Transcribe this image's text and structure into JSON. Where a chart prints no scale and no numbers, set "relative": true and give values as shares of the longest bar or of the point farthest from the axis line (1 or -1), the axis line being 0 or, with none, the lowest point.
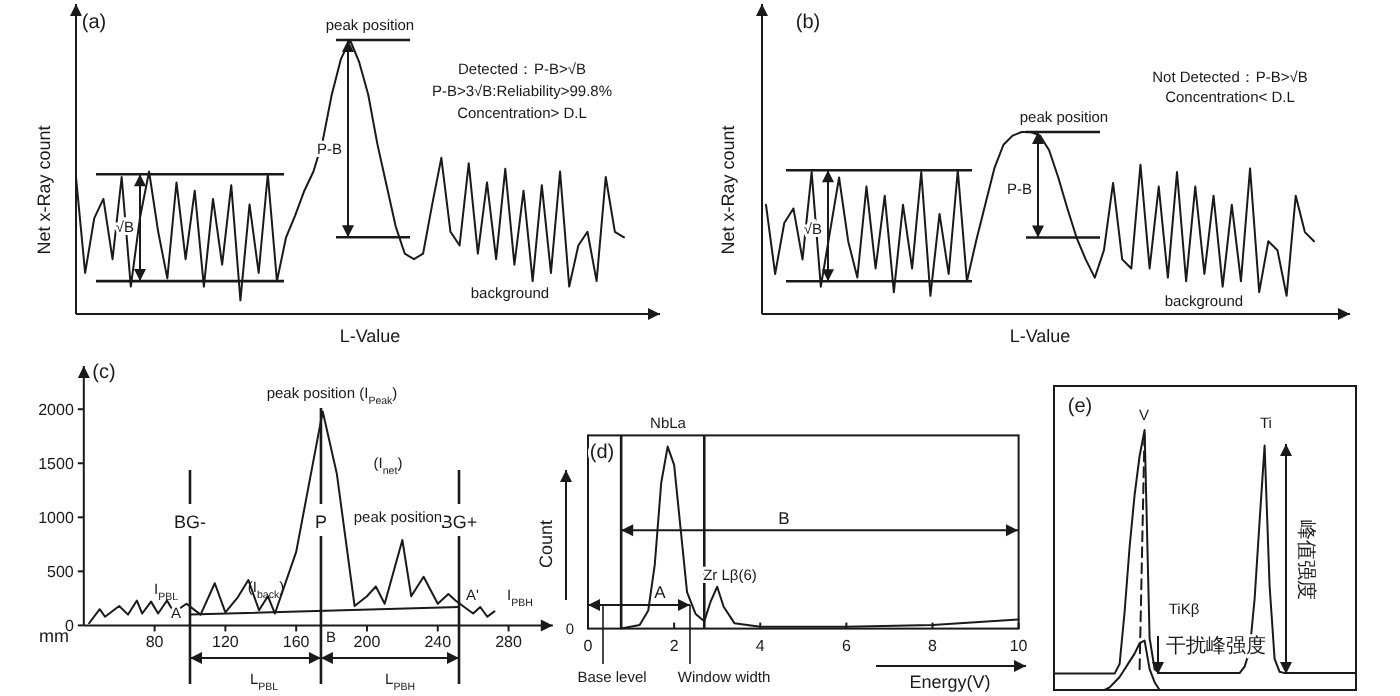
{
  "chart_data": [
    {
      "type": "line",
      "title": "(a)",
      "xlabel": "L-Value",
      "ylabel": "Net x-Ray count",
      "relative": true,
      "categories": [
        null,
        null,
        null,
        null,
        null,
        null,
        null,
        null,
        null,
        null,
        null,
        null,
        null,
        null,
        null,
        null,
        null,
        null,
        null,
        null,
        null,
        null,
        null,
        null,
        null,
        null,
        null,
        null,
        null,
        null,
        null,
        null,
        null,
        null,
        null,
        null,
        null,
        null,
        null,
        null,
        null,
        null,
        null,
        null,
        null,
        null,
        null,
        null,
        null,
        null,
        null,
        null,
        null,
        null,
        null,
        null,
        null,
        null,
        null,
        null,
        null
      ],
      "series": [
        {
          "color": "#1a1a1a",
          "values": [
            0.5,
            0.15,
            0.35,
            0.42,
            0.2,
            0.5,
            0.1,
            0.35,
            0.52,
            0.3,
            0.13,
            0.48,
            0.2,
            0.45,
            0.1,
            0.42,
            0.18,
            0.47,
            0.05,
            0.4,
            0.15,
            0.51,
            0.12,
            0.28,
            0.36,
            0.45,
            0.52,
            0.63,
            0.8,
            0.93,
            1,
            0.92,
            0.8,
            0.62,
            0.47,
            0.32,
            0.22,
            0.2,
            0.22,
            0.4,
            0.57,
            0.3,
            0.25,
            0.55,
            0.22,
            0.48,
            0.2,
            0.53,
            0.18,
            0.45,
            0.12,
            0.47,
            0.15,
            0.52,
            0.1,
            0.25,
            0.3,
            0.12,
            0.5,
            0.3,
            0.28
          ]
        }
      ],
      "ref_lines": [
        {
          "axis": "y",
          "value": 0.51
        },
        {
          "axis": "y",
          "value": 0.12
        },
        {
          "axis": "y",
          "value": 1
        },
        {
          "axis": "y",
          "value": 0.28
        }
      ],
      "annotations": [
        "peak position",
        "P-B",
        "√B",
        "Detected：P-B>√B",
        "P-B>3√B:Reliability>99.8%",
        "Concentration> D.L",
        "background"
      ]
    },
    {
      "type": "line",
      "title": "(b)",
      "xlabel": "L-Value",
      "ylabel": "Net x-Ray count",
      "relative": true,
      "categories": [
        null,
        null,
        null,
        null,
        null,
        null,
        null,
        null,
        null,
        null,
        null,
        null,
        null,
        null,
        null,
        null,
        null,
        null,
        null,
        null,
        null,
        null,
        null,
        null,
        null,
        null,
        null,
        null,
        null,
        null,
        null,
        null,
        null,
        null,
        null,
        null,
        null,
        null,
        null,
        null,
        null,
        null,
        null,
        null,
        null,
        null,
        null,
        null,
        null,
        null,
        null,
        null,
        null,
        null,
        null,
        null,
        null,
        null,
        null,
        null,
        null
      ],
      "series": [
        {
          "color": "#1a1a1a",
          "values": [
            0.6,
            0.22,
            0.5,
            0.58,
            0.3,
            0.78,
            0.15,
            0.45,
            0.75,
            0.4,
            0.2,
            0.7,
            0.25,
            0.65,
            0.12,
            0.6,
            0.25,
            0.78,
            0.1,
            0.55,
            0.22,
            0.79,
            0.18,
            0.4,
            0.6,
            0.8,
            0.93,
            0.98,
            1,
            1,
            0.98,
            0.9,
            0.75,
            0.58,
            0.42,
            0.3,
            0.2,
            0.35,
            0.72,
            0.3,
            0.25,
            0.82,
            0.25,
            0.7,
            0.2,
            0.78,
            0.18,
            0.7,
            0.22,
            0.65,
            0.15,
            0.6,
            0.18,
            0.8,
            0.12,
            0.4,
            0.35,
            0.1,
            0.65,
            0.45,
            0.4
          ]
        }
      ],
      "ref_lines": [
        {
          "axis": "y",
          "value": 0.79
        },
        {
          "axis": "y",
          "value": 0.18
        },
        {
          "axis": "y",
          "value": 1
        },
        {
          "axis": "y",
          "value": 0.42
        }
      ],
      "annotations": [
        "peak position",
        "P-B",
        "√B",
        "Not Detected：P-B>√B",
        "Concentration< D.L",
        "background"
      ]
    },
    {
      "type": "line",
      "title": "(c)",
      "xlabel": "mm",
      "xlim": [
        40,
        305
      ],
      "xticks": [
        80,
        120,
        160,
        200,
        240,
        280
      ],
      "ylim": [
        0,
        2400
      ],
      "yticks": [
        0,
        500,
        1000,
        1500,
        2000
      ],
      "series": [
        {
          "color": "#1a1a1a",
          "x": [
            43,
            49,
            52,
            60,
            65,
            70,
            73,
            78,
            82,
            87,
            91,
            98,
            106,
            114,
            120,
            127,
            133,
            139,
            144,
            148,
            160,
            175,
            183,
            193,
            200,
            205,
            210,
            220,
            225,
            232,
            240,
            246,
            250,
            260,
            264,
            268,
            272
          ],
          "values": [
            20,
            150,
            80,
            180,
            100,
            230,
            110,
            220,
            110,
            230,
            120,
            200,
            100,
            390,
            120,
            260,
            420,
            140,
            270,
            110,
            680,
            1980,
            1400,
            180,
            270,
            360,
            200,
            790,
            270,
            450,
            200,
            290,
            230,
            110,
            170,
            80,
            130
          ]
        },
        {
          "type": "line",
          "color": "#1a1a1a",
          "x": [
            100,
            252
          ],
          "values": [
            100,
            170
          ]
        }
      ],
      "ref_lines": [
        {
          "axis": "x",
          "value": 100,
          "label": "BG-"
        },
        {
          "axis": "x",
          "value": 252,
          "label": "BG+"
        },
        {
          "axis": "x",
          "value": 174,
          "label": "P"
        }
      ],
      "annotations": [
        "peak position (I$_{Peak}$)",
        "(I$_{net}$)",
        "peak position",
        "I$_{PBL}$",
        "(I$_{back}$)",
        "A",
        "A'",
        "B",
        "I$_{PBH}$",
        "L$_{PBL}$",
        "L$_{PBH}$"
      ]
    },
    {
      "type": "line",
      "title": "(d)",
      "xlabel": "Energy(V)",
      "ylabel": "Count",
      "relative": true,
      "xlim": [
        0,
        10
      ],
      "xticks": [
        0,
        2,
        4,
        6,
        8,
        10
      ],
      "series": [
        {
          "color": "#1a1a1a",
          "x": [
            0.77,
            1.2,
            1.4,
            1.55,
            1.7,
            1.85,
            2,
            2.15,
            2.3,
            2.5,
            2.7,
            2.85,
            3,
            3.15,
            3.4,
            4,
            6,
            8,
            10
          ],
          "values": [
            0,
            0.02,
            0.1,
            0.35,
            0.8,
            1,
            0.9,
            0.55,
            0.2,
            0.08,
            0.04,
            0.15,
            0.23,
            0.12,
            0.03,
            0.01,
            0.01,
            0.02,
            0.05
          ]
        }
      ],
      "ref_lines": [
        {
          "axis": "x",
          "value": 0.77
        },
        {
          "axis": "x",
          "value": 2.7
        },
        {
          "axis": "y",
          "value": 0.54,
          "label": "B"
        },
        {
          "axis": "y",
          "value": 0.13,
          "label": "A"
        }
      ],
      "annotations": [
        "NbLa",
        "Zr Lβ(6)",
        "Base level",
        "Window width",
        "0"
      ]
    },
    {
      "type": "line",
      "title": "(e)",
      "relative": true,
      "categories": [
        null,
        null,
        null,
        null,
        null,
        null,
        null,
        null,
        null,
        null,
        null,
        null,
        null,
        null,
        null,
        null,
        null,
        null,
        null,
        null,
        null,
        null,
        null,
        null,
        null,
        null,
        null,
        null,
        null,
        null,
        null,
        null,
        null,
        null,
        null,
        null,
        null,
        null,
        null,
        null,
        null,
        null,
        null,
        null,
        null,
        null,
        null,
        null,
        null,
        null,
        null,
        null,
        null,
        null,
        null,
        null,
        null,
        null,
        null,
        null,
        null
      ],
      "series": [
        {
          "color": "#1a1a1a",
          "values": [
            0.063,
            0.063,
            0.063,
            0.063,
            0.063,
            0.063,
            0.063,
            0.063,
            0.063,
            0.063,
            0.063,
            0.063,
            0.063,
            0.1,
            0.3,
            0.55,
            0.75,
            0.9,
            1,
            0.2,
            0.08,
            0.065,
            0.065,
            0.065,
            0.065,
            0.065,
            0.065,
            0.065,
            0.065,
            0.065,
            0.065,
            0.065,
            0.065,
            0.065,
            0.065,
            0.065,
            0.065,
            0.065,
            0.09,
            0.15,
            0.35,
            0.65,
            0.94,
            0.4,
            0.12,
            0.07,
            0.065,
            0.065,
            0.065,
            0.065,
            0.065,
            0.065,
            0.065,
            0.065,
            0.065,
            0.065,
            0.065,
            0.065,
            0.065,
            0.065,
            0.065
          ]
        },
        {
          "color": "#1a1a1a",
          "values": [
            null,
            null,
            null,
            null,
            null,
            null,
            null,
            null,
            null,
            null,
            0,
            0.01,
            0.03,
            0.05,
            0.08,
            0.11,
            0.14,
            0.18,
            0.19,
            0.08,
            0.03,
            0,
            null,
            null,
            null,
            null,
            null,
            null,
            null,
            null,
            null,
            null,
            null,
            null,
            null,
            null,
            null,
            null,
            null,
            null,
            null,
            null,
            null,
            null,
            null,
            null,
            null,
            null,
            null,
            null,
            null,
            null,
            null,
            null,
            null,
            null,
            null,
            null,
            null,
            null,
            null
          ]
        },
        {
          "color": "#1a1a1a",
          "line_style": "dashed",
          "values": [
            null,
            null,
            null,
            null,
            null,
            null,
            null,
            null,
            null,
            null,
            null,
            null,
            null,
            null,
            null,
            null,
            null,
            0.08,
            1,
            null,
            null,
            null,
            null,
            null,
            null,
            null,
            null,
            null,
            null,
            null,
            null,
            null,
            null,
            null,
            null,
            null,
            null,
            null,
            null,
            null,
            null,
            null,
            null,
            null,
            null,
            null,
            null,
            null,
            null,
            null,
            null,
            null,
            null,
            null,
            null,
            null,
            null,
            null,
            null,
            null,
            null
          ]
        }
      ],
      "annotations": [
        "V",
        "Ti",
        "TiKβ",
        "峰值强度",
        "干扰峰强度"
      ]
    }
  ]
}
